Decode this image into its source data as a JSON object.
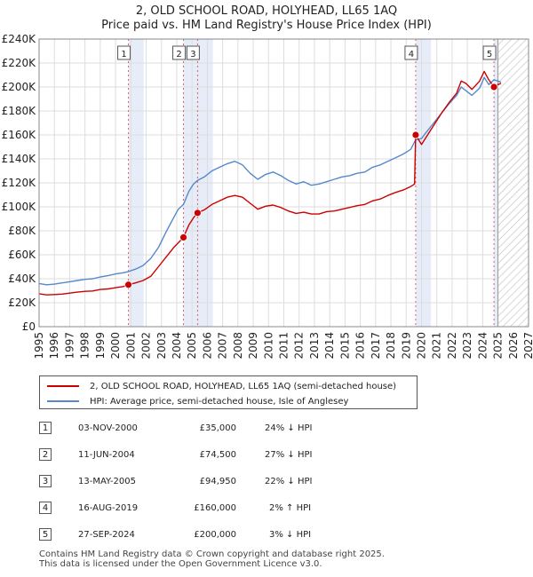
{
  "title_line1": "2, OLD SCHOOL ROAD, HOLYHEAD, LL65 1AQ",
  "title_line2": "Price paid vs. HM Land Registry's House Price Index (HPI)",
  "colors": {
    "property": "#cc0000",
    "hpi": "#5588cc",
    "shade": "#dce6f5",
    "marker_line": "#e06060",
    "grid": "#dddddd"
  },
  "legend": {
    "property_label": "2, OLD SCHOOL ROAD, HOLYHEAD, LL65 1AQ (semi-detached house)",
    "hpi_label": "HPI: Average price, semi-detached house, Isle of Anglesey"
  },
  "sales": [
    {
      "num": "1",
      "date": "03-NOV-2000",
      "price": "£35,000",
      "hpi": "24% ↓ HPI"
    },
    {
      "num": "2",
      "date": "11-JUN-2004",
      "price": "£74,500",
      "hpi": "27% ↓ HPI"
    },
    {
      "num": "3",
      "date": "13-MAY-2005",
      "price": "£94,950",
      "hpi": "22% ↓ HPI"
    },
    {
      "num": "4",
      "date": "16-AUG-2019",
      "price": "£160,000",
      "hpi": "2% ↑ HPI"
    },
    {
      "num": "5",
      "date": "27-SEP-2024",
      "price": "£200,000",
      "hpi": "3% ↓ HPI"
    }
  ],
  "footer_line1": "Contains HM Land Registry data © Crown copyright and database right 2025.",
  "footer_line2": "This data is licensed under the Open Government Licence v3.0.",
  "chart_data": {
    "type": "line",
    "title": "2, OLD SCHOOL ROAD, HOLYHEAD, LL65 1AQ — Price paid vs. HM Land Registry's House Price Index (HPI)",
    "xlim": [
      1995,
      2027
    ],
    "ylim": [
      0,
      240000
    ],
    "x_ticks": [
      1995,
      1996,
      1997,
      1998,
      1999,
      2000,
      2001,
      2002,
      2003,
      2004,
      2005,
      2006,
      2007,
      2008,
      2009,
      2010,
      2011,
      2012,
      2013,
      2014,
      2015,
      2016,
      2017,
      2018,
      2019,
      2020,
      2021,
      2022,
      2023,
      2024,
      2025,
      2026,
      2027
    ],
    "y_ticks": [
      {
        "v": 0,
        "label": "£0"
      },
      {
        "v": 20000,
        "label": "£20K"
      },
      {
        "v": 40000,
        "label": "£40K"
      },
      {
        "v": 60000,
        "label": "£60K"
      },
      {
        "v": 80000,
        "label": "£80K"
      },
      {
        "v": 100000,
        "label": "£100K"
      },
      {
        "v": 120000,
        "label": "£120K"
      },
      {
        "v": 140000,
        "label": "£140K"
      },
      {
        "v": 160000,
        "label": "£160K"
      },
      {
        "v": 180000,
        "label": "£180K"
      },
      {
        "v": 200000,
        "label": "£200K"
      },
      {
        "v": 220000,
        "label": "£220K"
      },
      {
        "v": 240000,
        "label": "£240K"
      }
    ],
    "future_hatch_from": 2025.0,
    "sale_markers": [
      {
        "label": "1",
        "x": 2000.84,
        "y": 35000
      },
      {
        "label": "2",
        "x": 2004.44,
        "y": 74500
      },
      {
        "label": "3",
        "x": 2005.36,
        "y": 94950
      },
      {
        "label": "4",
        "x": 2019.62,
        "y": 160000
      },
      {
        "label": "5",
        "x": 2024.74,
        "y": 200000
      }
    ],
    "series": [
      {
        "name": "2, OLD SCHOOL ROAD, HOLYHEAD, LL65 1AQ (semi-detached house)",
        "color": "#cc0000",
        "points": [
          [
            1995.0,
            27500
          ],
          [
            1995.5,
            26500
          ],
          [
            1996.0,
            26800
          ],
          [
            1996.5,
            27200
          ],
          [
            1997.0,
            28000
          ],
          [
            1997.5,
            28800
          ],
          [
            1998.0,
            29500
          ],
          [
            1998.5,
            29800
          ],
          [
            1999.0,
            31000
          ],
          [
            1999.5,
            31500
          ],
          [
            2000.0,
            32500
          ],
          [
            2000.5,
            33500
          ],
          [
            2000.84,
            35000
          ],
          [
            2001.3,
            36500
          ],
          [
            2001.8,
            38500
          ],
          [
            2002.3,
            42000
          ],
          [
            2002.8,
            50000
          ],
          [
            2003.3,
            58000
          ],
          [
            2003.8,
            66000
          ],
          [
            2004.1,
            70000
          ],
          [
            2004.44,
            74500
          ],
          [
            2004.8,
            85000
          ],
          [
            2005.1,
            91000
          ],
          [
            2005.36,
            94950
          ],
          [
            2005.8,
            97500
          ],
          [
            2006.3,
            102000
          ],
          [
            2006.8,
            105000
          ],
          [
            2007.3,
            108000
          ],
          [
            2007.8,
            109500
          ],
          [
            2008.3,
            108000
          ],
          [
            2008.8,
            103000
          ],
          [
            2009.3,
            98000
          ],
          [
            2009.8,
            100500
          ],
          [
            2010.3,
            101500
          ],
          [
            2010.8,
            99500
          ],
          [
            2011.3,
            96500
          ],
          [
            2011.8,
            94500
          ],
          [
            2012.3,
            95500
          ],
          [
            2012.8,
            94000
          ],
          [
            2013.3,
            94000
          ],
          [
            2013.8,
            96000
          ],
          [
            2014.3,
            96500
          ],
          [
            2014.8,
            98000
          ],
          [
            2015.3,
            99500
          ],
          [
            2015.8,
            101000
          ],
          [
            2016.3,
            102000
          ],
          [
            2016.8,
            105000
          ],
          [
            2017.3,
            106500
          ],
          [
            2017.8,
            109500
          ],
          [
            2018.3,
            112000
          ],
          [
            2018.8,
            114000
          ],
          [
            2019.3,
            117000
          ],
          [
            2019.55,
            119000
          ],
          [
            2019.62,
            160000
          ],
          [
            2020.0,
            152000
          ],
          [
            2020.3,
            158000
          ],
          [
            2020.8,
            168000
          ],
          [
            2021.3,
            178000
          ],
          [
            2021.8,
            187000
          ],
          [
            2022.3,
            195000
          ],
          [
            2022.6,
            205000
          ],
          [
            2022.9,
            203000
          ],
          [
            2023.3,
            198000
          ],
          [
            2023.8,
            205000
          ],
          [
            2024.1,
            213000
          ],
          [
            2024.4,
            206000
          ],
          [
            2024.74,
            200000
          ],
          [
            2025.0,
            202000
          ],
          [
            2025.2,
            203000
          ]
        ]
      },
      {
        "name": "HPI: Average price, semi-detached house, Isle of Anglesey",
        "color": "#5588cc",
        "points": [
          [
            1995.0,
            36000
          ],
          [
            1995.5,
            35000
          ],
          [
            1996.0,
            35500
          ],
          [
            1996.5,
            36500
          ],
          [
            1997.0,
            37500
          ],
          [
            1997.5,
            38500
          ],
          [
            1998.0,
            39500
          ],
          [
            1998.5,
            40000
          ],
          [
            1999.0,
            41500
          ],
          [
            1999.5,
            42500
          ],
          [
            2000.0,
            44000
          ],
          [
            2000.5,
            45000
          ],
          [
            2000.84,
            46000
          ],
          [
            2001.3,
            48000
          ],
          [
            2001.8,
            51000
          ],
          [
            2002.3,
            57000
          ],
          [
            2002.8,
            66000
          ],
          [
            2003.3,
            79000
          ],
          [
            2003.8,
            91000
          ],
          [
            2004.1,
            98000
          ],
          [
            2004.44,
            102000
          ],
          [
            2004.8,
            113000
          ],
          [
            2005.1,
            119000
          ],
          [
            2005.36,
            122000
          ],
          [
            2005.8,
            125000
          ],
          [
            2006.3,
            130000
          ],
          [
            2006.8,
            133000
          ],
          [
            2007.3,
            136000
          ],
          [
            2007.8,
            138000
          ],
          [
            2008.3,
            135000
          ],
          [
            2008.8,
            128000
          ],
          [
            2009.3,
            123000
          ],
          [
            2009.8,
            127000
          ],
          [
            2010.3,
            129000
          ],
          [
            2010.8,
            126000
          ],
          [
            2011.3,
            122000
          ],
          [
            2011.8,
            119000
          ],
          [
            2012.3,
            121000
          ],
          [
            2012.8,
            118000
          ],
          [
            2013.3,
            119000
          ],
          [
            2013.8,
            121000
          ],
          [
            2014.3,
            123000
          ],
          [
            2014.8,
            125000
          ],
          [
            2015.3,
            126000
          ],
          [
            2015.8,
            128000
          ],
          [
            2016.3,
            129000
          ],
          [
            2016.8,
            133000
          ],
          [
            2017.3,
            135000
          ],
          [
            2017.8,
            138000
          ],
          [
            2018.3,
            141000
          ],
          [
            2018.8,
            144000
          ],
          [
            2019.3,
            148000
          ],
          [
            2019.62,
            156000
          ],
          [
            2020.0,
            157000
          ],
          [
            2020.3,
            162000
          ],
          [
            2020.8,
            170000
          ],
          [
            2021.3,
            178000
          ],
          [
            2021.8,
            186000
          ],
          [
            2022.3,
            193000
          ],
          [
            2022.6,
            200000
          ],
          [
            2022.9,
            197000
          ],
          [
            2023.3,
            193000
          ],
          [
            2023.8,
            199000
          ],
          [
            2024.1,
            208000
          ],
          [
            2024.4,
            202000
          ],
          [
            2024.74,
            206000
          ],
          [
            2025.0,
            205000
          ],
          [
            2025.2,
            204000
          ]
        ]
      }
    ]
  }
}
